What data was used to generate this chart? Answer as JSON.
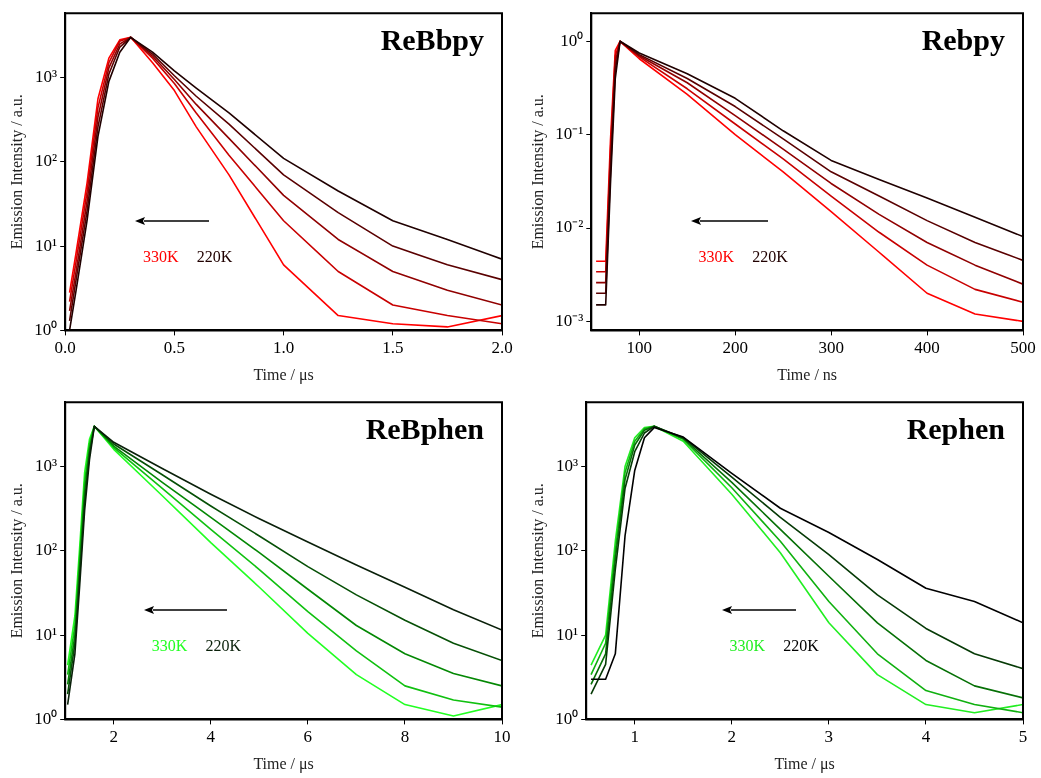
{
  "chart_data": [
    {
      "type": "line",
      "title": "ReBbpy",
      "xlabel": "Time / μs",
      "ylabel": "Emission Intensity / a.u.",
      "log": "y",
      "marker": "none",
      "line_style": "solid",
      "grid": false,
      "legend": false,
      "xlim": [
        0,
        2
      ],
      "xticks": [
        {
          "value": 0,
          "label": "0.0"
        },
        {
          "value": 0.5,
          "label": "0.5"
        },
        {
          "value": 1,
          "label": "1.0"
        },
        {
          "value": 1.5,
          "label": "1.5"
        },
        {
          "value": 2,
          "label": "2.0"
        }
      ],
      "ylim": [
        1,
        5800
      ],
      "yticks": [
        {
          "value": 1,
          "label": "10⁰"
        },
        {
          "value": 10,
          "label": "10¹"
        },
        {
          "value": 100,
          "label": "10²"
        },
        {
          "value": 1000,
          "label": "10³"
        }
      ],
      "annotations": [
        "330K",
        "220K"
      ],
      "x": [
        0.02,
        0.05,
        0.1,
        0.15,
        0.2,
        0.25,
        0.3,
        0.4,
        0.5,
        0.6,
        0.75,
        1.0,
        1.25,
        1.5,
        1.75,
        2.0
      ],
      "series": [
        {
          "color": "#200000",
          "values": [
            1,
            3,
            20,
            200,
            900,
            2000,
            3000,
            2000,
            1200,
            750,
            380,
            110,
            45,
            20,
            12,
            7
          ]
        },
        {
          "color": "#5a0000",
          "values": [
            1.3,
            4,
            26,
            260,
            1100,
            2300,
            3000,
            1900,
            1050,
            600,
            280,
            70,
            25,
            10,
            6,
            4
          ]
        },
        {
          "color": "#900000",
          "values": [
            1.7,
            5,
            34,
            340,
            1300,
            2500,
            3000,
            1800,
            950,
            480,
            190,
            40,
            12,
            5,
            3,
            2
          ]
        },
        {
          "color": "#c80000",
          "values": [
            2.2,
            6.6,
            44,
            440,
            1500,
            2700,
            3000,
            1700,
            850,
            380,
            120,
            20,
            5,
            2,
            1.5,
            1.2
          ]
        },
        {
          "color": "#ff0000",
          "values": [
            2.8,
            8.4,
            56,
            560,
            1700,
            2800,
            3000,
            1500,
            700,
            260,
            70,
            6,
            1.5,
            1.2,
            1.1,
            1.5
          ]
        }
      ]
    },
    {
      "type": "line",
      "title": "Rebpy",
      "xlabel": "Time / ns",
      "ylabel": "Emission Intensity / a.u.",
      "log": "y",
      "marker": "none",
      "line_style": "solid",
      "grid": false,
      "legend": false,
      "xlim": [
        50,
        500
      ],
      "xticks": [
        100,
        200,
        300,
        400,
        500
      ],
      "ylim": [
        0.0008,
        2
      ],
      "yticks": [
        {
          "value": 0.001,
          "label": "10⁻³"
        },
        {
          "value": 0.01,
          "label": "10⁻²"
        },
        {
          "value": 0.1,
          "label": "10⁻¹"
        },
        {
          "value": 1,
          "label": "10⁰"
        }
      ],
      "annotations": [
        "330K",
        "220K"
      ],
      "x": [
        55,
        65,
        70,
        75,
        80,
        100,
        150,
        200,
        250,
        300,
        350,
        400,
        450,
        500
      ],
      "series": [
        {
          "color": "#200000",
          "values": [
            0.0015,
            0.0015,
            0.03,
            0.4,
            1,
            0.75,
            0.45,
            0.245,
            0.11,
            0.053,
            0.033,
            0.021,
            0.013,
            0.0081
          ]
        },
        {
          "color": "#5a0000",
          "values": [
            0.002,
            0.002,
            0.04,
            0.5,
            1,
            0.72,
            0.4,
            0.2,
            0.09,
            0.04,
            0.022,
            0.012,
            0.007,
            0.0045
          ]
        },
        {
          "color": "#900000",
          "values": [
            0.0026,
            0.0026,
            0.052,
            0.6,
            1,
            0.7,
            0.36,
            0.16,
            0.07,
            0.03,
            0.014,
            0.007,
            0.004,
            0.0025
          ]
        },
        {
          "color": "#c80000",
          "values": [
            0.0034,
            0.0034,
            0.068,
            0.7,
            1,
            0.68,
            0.31,
            0.13,
            0.055,
            0.022,
            0.009,
            0.004,
            0.0022,
            0.0016
          ]
        },
        {
          "color": "#ff0000",
          "values": [
            0.0044,
            0.0044,
            0.088,
            0.8,
            1,
            0.65,
            0.27,
            0.1,
            0.04,
            0.015,
            0.0055,
            0.002,
            0.0012,
            0.001
          ]
        }
      ]
    },
    {
      "type": "line",
      "title": "ReBphen",
      "xlabel": "Time / μs",
      "ylabel": "Emission Intensity / a.u.",
      "log": "y",
      "marker": "none",
      "line_style": "solid",
      "grid": false,
      "legend": false,
      "xlim": [
        1,
        10
      ],
      "xticks": [
        2,
        4,
        6,
        8,
        10
      ],
      "ylim": [
        1,
        5800
      ],
      "yticks": [
        {
          "value": 1,
          "label": "10⁰"
        },
        {
          "value": 10,
          "label": "10¹"
        },
        {
          "value": 100,
          "label": "10²"
        },
        {
          "value": 1000,
          "label": "10³"
        }
      ],
      "annotations": [
        "330K",
        "220K"
      ],
      "x": [
        1.05,
        1.2,
        1.3,
        1.4,
        1.5,
        1.6,
        2,
        3,
        4,
        5,
        6,
        7,
        8,
        9,
        10
      ],
      "series": [
        {
          "color": "#0a200a",
          "values": [
            1.5,
            6,
            40,
            300,
            1200,
            3000,
            1940,
            950,
            470,
            240,
            127,
            68,
            37,
            20,
            11.5
          ]
        },
        {
          "color": "#065006",
          "values": [
            2,
            8,
            52,
            390,
            1400,
            3000,
            1850,
            800,
            340,
            150,
            65,
            30,
            15,
            8,
            5
          ]
        },
        {
          "color": "#048804",
          "values": [
            2.6,
            10,
            68,
            500,
            1600,
            3000,
            1750,
            650,
            250,
            95,
            35,
            13,
            6,
            3.5,
            2.5
          ]
        },
        {
          "color": "#10c010",
          "values": [
            3.4,
            13,
            88,
            650,
            1850,
            3000,
            1680,
            550,
            180,
            60,
            19,
            6.5,
            2.5,
            1.7,
            1.4
          ]
        },
        {
          "color": "#22ff22",
          "values": [
            4.4,
            17,
            115,
            850,
            2100,
            3000,
            1600,
            450,
            125,
            37,
            10.5,
            3.4,
            1.5,
            1.1,
            1.5
          ]
        }
      ]
    },
    {
      "type": "line",
      "title": "Rephen",
      "xlabel": "Time / μs",
      "ylabel": "Emission Intensity / a.u.",
      "log": "y",
      "marker": "none",
      "line_style": "solid",
      "grid": false,
      "legend": false,
      "xlim": [
        0.5,
        5
      ],
      "xticks": [
        1,
        2,
        3,
        4,
        5
      ],
      "ylim": [
        1,
        5800
      ],
      "yticks": [
        {
          "value": 1,
          "label": "10⁰"
        },
        {
          "value": 10,
          "label": "10¹"
        },
        {
          "value": 100,
          "label": "10²"
        },
        {
          "value": 1000,
          "label": "10³"
        }
      ],
      "annotations": [
        "330K",
        "220K"
      ],
      "x": [
        0.55,
        0.7,
        0.8,
        0.9,
        1.0,
        1.1,
        1.2,
        1.5,
        2,
        2.5,
        3,
        3.5,
        4,
        4.5,
        5
      ],
      "series": [
        {
          "color": "#000000",
          "values": [
            3,
            3,
            6,
            150,
            900,
            2200,
            2900,
            2240,
            830,
            320,
            165,
            79,
            36,
            25,
            14
          ]
        },
        {
          "color": "#063a06",
          "values": [
            2,
            4.5,
            60,
            550,
            1500,
            2500,
            3000,
            2200,
            750,
            250,
            90,
            30,
            12,
            6,
            4
          ]
        },
        {
          "color": "#067006",
          "values": [
            2.6,
            6,
            80,
            700,
            1800,
            2700,
            3000,
            2150,
            650,
            180,
            50,
            14,
            5,
            2.5,
            1.8
          ]
        },
        {
          "color": "#10b010",
          "values": [
            3.4,
            8,
            100,
            850,
            2000,
            2800,
            3000,
            2100,
            560,
            130,
            25,
            6,
            2.2,
            1.5,
            1.2
          ]
        },
        {
          "color": "#22ee22",
          "values": [
            4.4,
            10,
            130,
            1000,
            2200,
            2900,
            3000,
            2000,
            470,
            95,
            14,
            3.4,
            1.5,
            1.2,
            1.5
          ]
        }
      ]
    }
  ]
}
